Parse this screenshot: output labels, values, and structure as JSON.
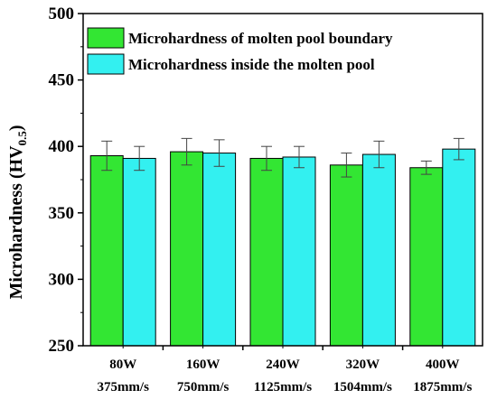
{
  "chart_data": {
    "type": "bar",
    "ylabel": "Microhardness (HV",
    "ylabel_subscript": "0.5",
    "ylabel_close": ")",
    "xlabel": "",
    "ylim": [
      250,
      500
    ],
    "yticks": [
      250,
      300,
      350,
      400,
      450,
      500
    ],
    "grid": false,
    "legend_position": "top",
    "categories": [
      {
        "line1": "80W",
        "line2": "375mm/s"
      },
      {
        "line1": "160W",
        "line2": "750mm/s"
      },
      {
        "line1": "240W",
        "line2": "1125mm/s"
      },
      {
        "line1": "320W",
        "line2": "1504mm/s"
      },
      {
        "line1": "400W",
        "line2": "1875mm/s"
      }
    ],
    "series": [
      {
        "name": "Microhardness of molten pool boundary",
        "color": "#33e633",
        "values": [
          393,
          396,
          391,
          386,
          384
        ],
        "errors": [
          11,
          10,
          9,
          9,
          5
        ]
      },
      {
        "name": "Microhardness inside the molten pool",
        "color": "#33f0f0",
        "values": [
          391,
          395,
          392,
          394,
          398
        ],
        "errors": [
          9,
          10,
          8,
          10,
          8
        ]
      }
    ]
  }
}
